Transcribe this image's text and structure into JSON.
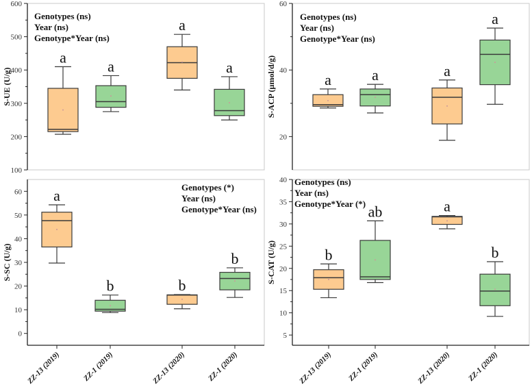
{
  "colors": {
    "orange": "#fdcb90",
    "green": "#98d597",
    "stroke": "#3a3a3a"
  },
  "chart_data": [
    {
      "type": "box",
      "ylabel": "S-UE (U/g)",
      "ylim": [
        100,
        600
      ],
      "yticks": [
        100,
        200,
        300,
        400,
        500,
        600
      ],
      "annotation": [
        "Genotypes (ns)",
        "Year (ns)",
        "Genotype*Year (ns)"
      ],
      "categories": [
        "ZZ-13 (2019)",
        "ZZ-1 (2019)",
        "ZZ-13 (2020)",
        "ZZ-1 (2020)"
      ],
      "boxes": [
        {
          "min": 207,
          "q1": 215,
          "median": 222,
          "q3": 345,
          "max": 410,
          "mean": 280,
          "letter": "a",
          "color": "orange"
        },
        {
          "min": 275,
          "q1": 288,
          "median": 305,
          "q3": 353,
          "max": 383,
          "mean": 322,
          "letter": "a",
          "color": "green"
        },
        {
          "min": 340,
          "q1": 375,
          "median": 422,
          "q3": 470,
          "max": 507,
          "mean": 424,
          "letter": "a",
          "color": "orange"
        },
        {
          "min": 250,
          "q1": 263,
          "median": 278,
          "q3": 342,
          "max": 380,
          "mean": 302,
          "letter": "a",
          "color": "green"
        }
      ]
    },
    {
      "type": "box",
      "ylabel": "S-ACP (µmol/d/g)",
      "ylim": [
        10,
        60
      ],
      "yticks": [
        20,
        40,
        60
      ],
      "annotation": [
        "Genotypes (ns)",
        "Year (ns)",
        "Genotype*Year (ns)"
      ],
      "categories": [
        "ZZ-13 (2019)",
        "ZZ-1 (2019)",
        "ZZ-13 (2020)",
        "ZZ-1 (2020)"
      ],
      "boxes": [
        {
          "min": 28.6,
          "q1": 29.1,
          "median": 29.6,
          "q3": 32.6,
          "max": 34.3,
          "mean": 30.8,
          "letter": "a",
          "color": "orange"
        },
        {
          "min": 27.1,
          "q1": 29.2,
          "median": 32.6,
          "q3": 34.3,
          "max": 35.7,
          "mean": 31.8,
          "letter": "a",
          "color": "green"
        },
        {
          "min": 18.9,
          "q1": 23.8,
          "median": 31.8,
          "q3": 34.6,
          "max": 37.0,
          "mean": 29.2,
          "letter": "a",
          "color": "orange"
        },
        {
          "min": 29.7,
          "q1": 35.6,
          "median": 44.7,
          "q3": 49.0,
          "max": 52.6,
          "mean": 42.3,
          "letter": "a",
          "color": "green"
        }
      ]
    },
    {
      "type": "box",
      "ylabel": "S-SC (U/g)",
      "ylim": [
        -5,
        65
      ],
      "yticks": [
        0,
        10,
        20,
        30,
        40,
        50,
        60
      ],
      "annotation": [
        "Genotypes (*)",
        "Year (ns)",
        "Genotype*Year (ns)"
      ],
      "categories": [
        "ZZ-13 (2019)",
        "ZZ-1 (2019)",
        "ZZ-13 (2020)",
        "ZZ-1 (2020)"
      ],
      "boxes": [
        {
          "min": 29.7,
          "q1": 36.5,
          "median": 47.6,
          "q3": 51.2,
          "max": 54.3,
          "mean": 43.9,
          "letter": "a",
          "color": "orange"
        },
        {
          "min": 8.8,
          "q1": 9.4,
          "median": 10.2,
          "q3": 14.0,
          "max": 16.2,
          "mean": 11.7,
          "letter": "b",
          "color": "green"
        },
        {
          "min": 10.4,
          "q1": 12.3,
          "median": 16.2,
          "q3": 16.3,
          "max": 16.4,
          "mean": 14.4,
          "letter": "b",
          "color": "orange"
        },
        {
          "min": 15.2,
          "q1": 18.4,
          "median": 23.2,
          "q3": 25.8,
          "max": 27.7,
          "mean": 22.1,
          "letter": "b",
          "color": "green"
        }
      ]
    },
    {
      "type": "box",
      "ylabel": "S-CAT (U/g)",
      "ylim": [
        2.7,
        40
      ],
      "yticks": [
        5,
        10,
        15,
        20,
        25,
        30,
        35,
        40
      ],
      "annotation": [
        "Genotypes (ns)",
        "Year (ns)",
        "Genotype*Year (*)"
      ],
      "categories": [
        "ZZ-13 (2019)",
        "ZZ-1 (2019)",
        "ZZ-13 (2020)",
        "ZZ-1 (2020)"
      ],
      "boxes": [
        {
          "min": 13.4,
          "q1": 15.3,
          "median": 17.9,
          "q3": 19.7,
          "max": 21.0,
          "mean": 17.5,
          "letter": "b",
          "color": "orange"
        },
        {
          "min": 16.8,
          "q1": 17.5,
          "median": 18.1,
          "q3": 26.3,
          "max": 30.7,
          "mean": 21.9,
          "letter": "ab",
          "color": "green"
        },
        {
          "min": 28.9,
          "q1": 29.9,
          "median": 31.6,
          "q3": 31.7,
          "max": 31.9,
          "mean": 30.7,
          "letter": "a",
          "color": "orange"
        },
        {
          "min": 9.2,
          "q1": 11.6,
          "median": 14.9,
          "q3": 18.7,
          "max": 21.5,
          "mean": 15.3,
          "letter": "b",
          "color": "green"
        }
      ]
    }
  ]
}
